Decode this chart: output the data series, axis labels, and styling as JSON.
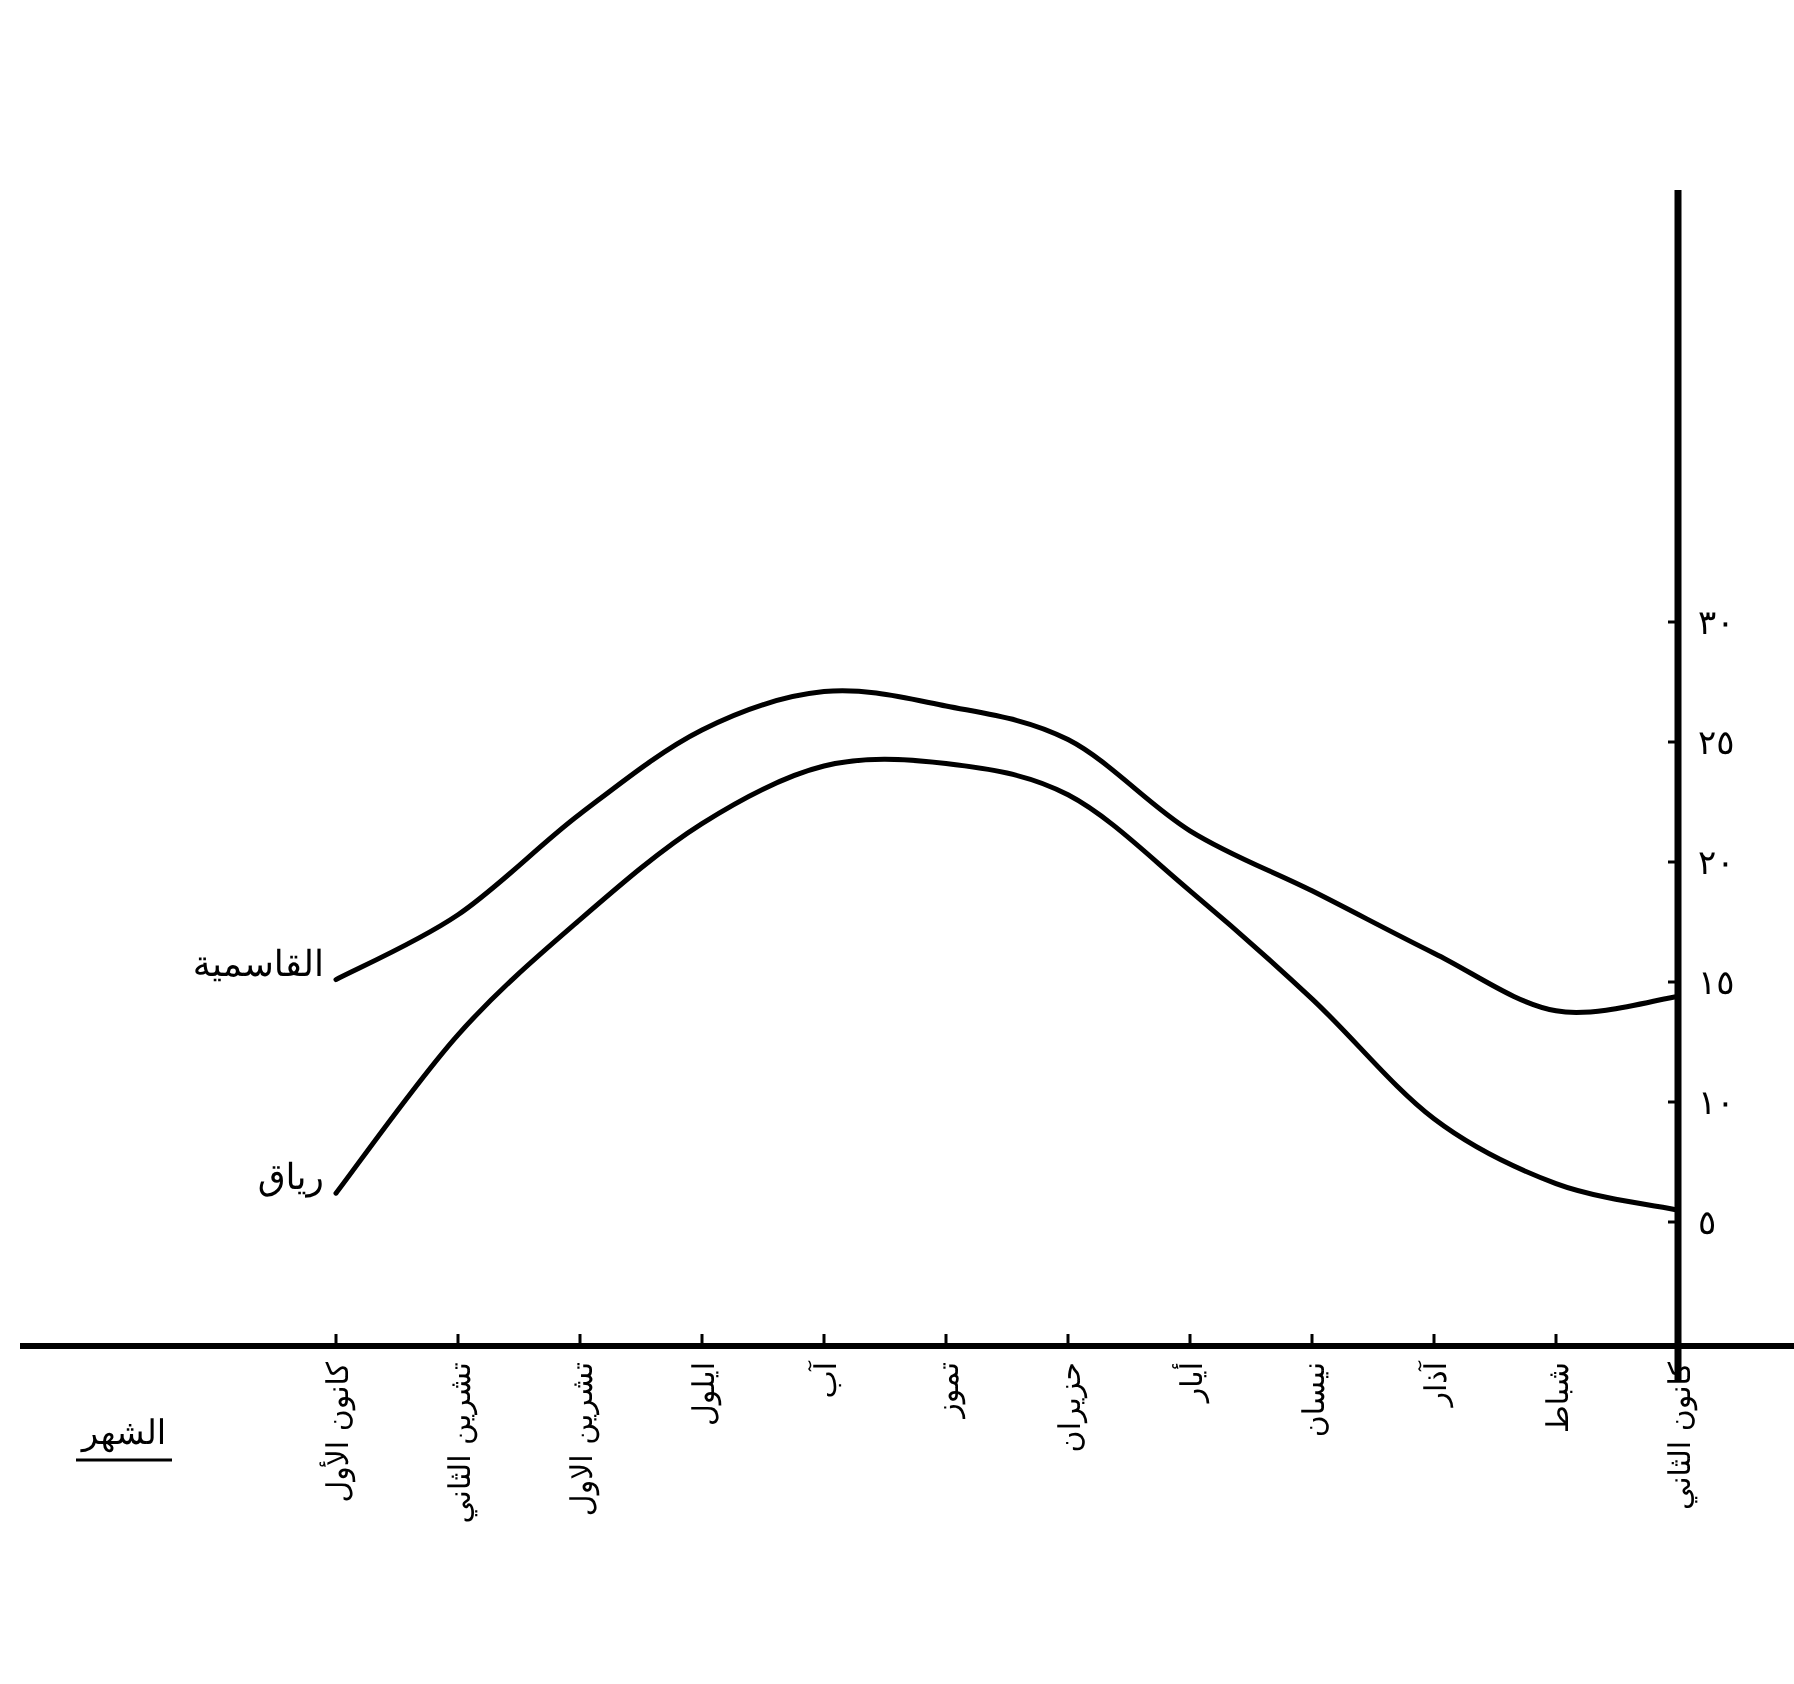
{
  "chart_data": {
    "type": "line",
    "xlabel": "الشهر",
    "categories": [
      "كانون الأول",
      "تشرين الثاني",
      "تشرين الاول",
      "ايلول",
      "آب",
      "تموز",
      "حزيران",
      "أيار",
      "نيسان",
      "آذار",
      "شباط",
      "كانون الثاني"
    ],
    "series": [
      {
        "name": "القاسمية",
        "color": "#000000",
        "values": [
          15.1,
          17.8,
          22,
          25.5,
          27.1,
          26.5,
          25.1,
          21.3,
          18.8,
          16.2,
          13.8,
          14.4
        ]
      },
      {
        "name": "رياق",
        "color": "#000000",
        "values": [
          6.2,
          12.8,
          17.6,
          21.6,
          24.0,
          24.1,
          22.8,
          18.8,
          14.3,
          9.3,
          6.6,
          5.5
        ]
      }
    ],
    "ylim": [
      0,
      48
    ],
    "yticks": [
      {
        "value": 5,
        "label": "٥"
      },
      {
        "value": 10,
        "label": "١٠"
      },
      {
        "value": 15,
        "label": "١٥"
      },
      {
        "value": 20,
        "label": "٢٠"
      },
      {
        "value": 25,
        "label": "٢٥"
      },
      {
        "value": 30,
        "label": "٣٠"
      }
    ],
    "grid": false,
    "legend": false,
    "marker": "none",
    "line_style": "solid"
  }
}
